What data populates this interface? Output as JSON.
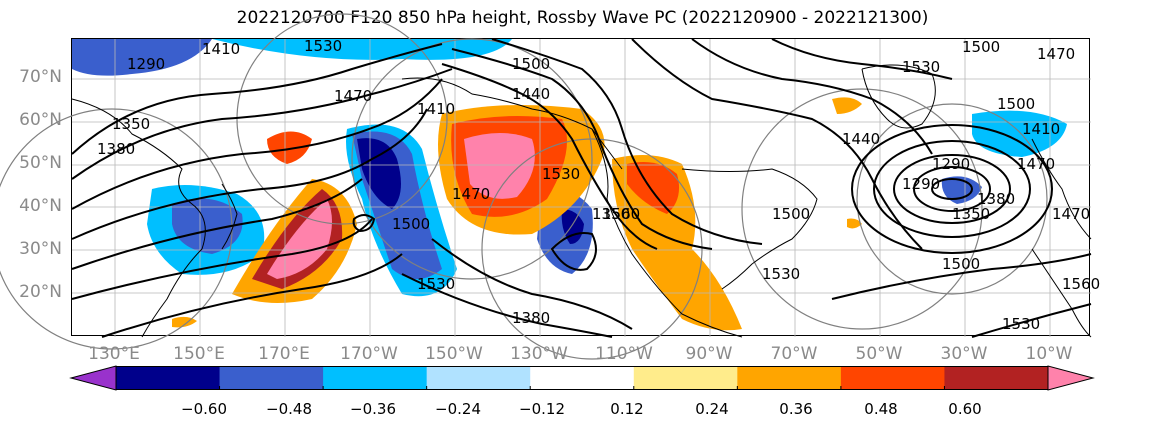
{
  "title": "2022120700 F120 850 hPa height, Rossby Wave PC (2022120900 - 2022121300)",
  "lat_labels": [
    "70°N",
    "60°N",
    "50°N",
    "40°N",
    "30°N",
    "20°N"
  ],
  "lon_labels": [
    "130°E",
    "150°E",
    "170°E",
    "170°W",
    "150°W",
    "130°W",
    "110°W",
    "90°W",
    "70°W",
    "50°W",
    "30°W",
    "10°W"
  ],
  "contour_labels": [
    "1530",
    "1470",
    "1530",
    "1500",
    "1290",
    "1410",
    "1470",
    "1350",
    "1380",
    "1410",
    "1440",
    "1470",
    "1500",
    "1530",
    "1560",
    "1500",
    "1530",
    "1350",
    "1380",
    "1530",
    "1500",
    "1440",
    "1290",
    "1410",
    "1500",
    "1350",
    "1470",
    "1380",
    "1290",
    "1470",
    "1500",
    "1530",
    "1560"
  ],
  "colorbar": {
    "ticks": [
      "−0.60",
      "−0.48",
      "−0.36",
      "−0.24",
      "−0.12",
      "0.12",
      "0.24",
      "0.36",
      "0.48",
      "0.60"
    ],
    "colors": [
      "#9932cc",
      "#00008b",
      "#3a5fcd",
      "#00bfff",
      "#b0e2ff",
      "#ffffff",
      "#ffec8b",
      "#ffa500",
      "#ff4500",
      "#b22222",
      "#ff82ab"
    ]
  }
}
